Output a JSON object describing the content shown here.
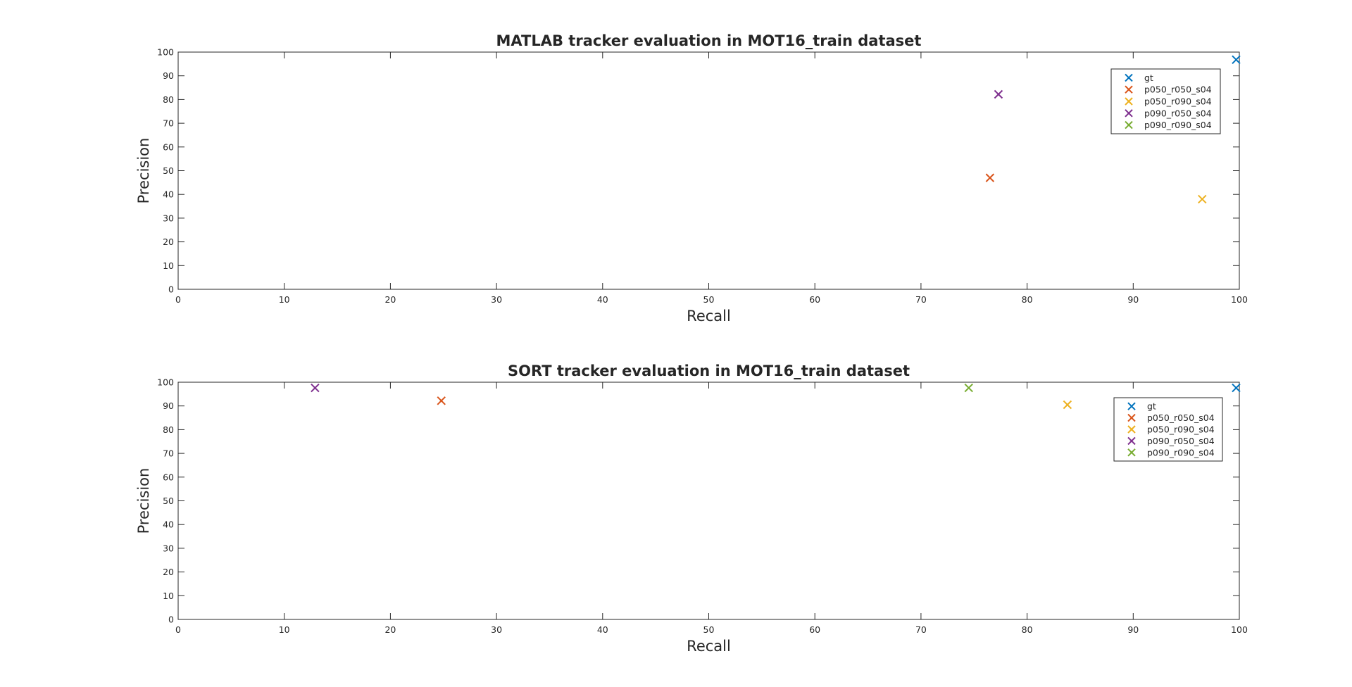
{
  "colors": {
    "gt": "#0072BD",
    "p050_r050_s04": "#D95319",
    "p050_r090_s04": "#EDB120",
    "p090_r050_s04": "#7E2F8E",
    "p090_r090_s04": "#77AC30"
  },
  "chart_data": [
    {
      "type": "scatter",
      "title": "MATLAB tracker evaluation in MOT16_train dataset",
      "xlabel": "Recall",
      "ylabel": "Precision",
      "xlim": [
        0,
        100
      ],
      "ylim": [
        0,
        100
      ],
      "xticks": [
        "0",
        "10",
        "20",
        "30",
        "40",
        "50",
        "60",
        "70",
        "80",
        "90",
        "100"
      ],
      "yticks": [
        "0",
        "10",
        "20",
        "30",
        "40",
        "50",
        "60",
        "70",
        "80",
        "90",
        "100"
      ],
      "marker": "x",
      "grid": false,
      "legend_position": "top-right",
      "series": [
        {
          "name": "gt",
          "x": 99.7,
          "y": 96.8
        },
        {
          "name": "p050_r050_s04",
          "x": 76.5,
          "y": 47.0
        },
        {
          "name": "p050_r090_s04",
          "x": 96.5,
          "y": 38.0
        },
        {
          "name": "p090_r050_s04",
          "x": 77.3,
          "y": 82.2
        },
        {
          "name": "p090_r090_s04",
          "x": null,
          "y": null
        }
      ]
    },
    {
      "type": "scatter",
      "title": "SORT tracker evaluation in MOT16_train dataset",
      "xlabel": "Recall",
      "ylabel": "Precision",
      "xlim": [
        0,
        100
      ],
      "ylim": [
        0,
        100
      ],
      "xticks": [
        "0",
        "10",
        "20",
        "30",
        "40",
        "50",
        "60",
        "70",
        "80",
        "90",
        "100"
      ],
      "yticks": [
        "0",
        "10",
        "20",
        "30",
        "40",
        "50",
        "60",
        "70",
        "80",
        "90",
        "100"
      ],
      "marker": "x",
      "grid": false,
      "legend_position": "top-right",
      "series": [
        {
          "name": "gt",
          "x": 99.7,
          "y": 97.6
        },
        {
          "name": "p050_r050_s04",
          "x": 24.8,
          "y": 92.2
        },
        {
          "name": "p050_r090_s04",
          "x": 83.8,
          "y": 90.5
        },
        {
          "name": "p090_r050_s04",
          "x": 12.9,
          "y": 97.6
        },
        {
          "name": "p090_r090_s04",
          "x": 74.5,
          "y": 97.6
        }
      ]
    }
  ]
}
